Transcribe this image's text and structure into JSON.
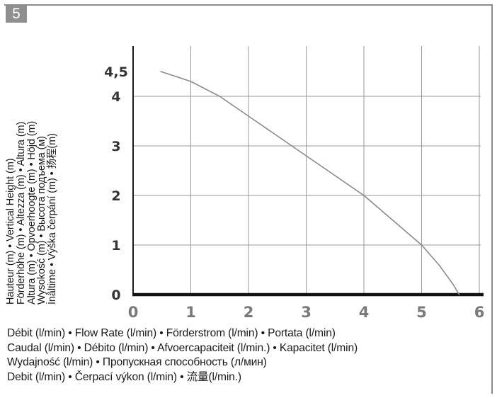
{
  "figure_number": "5",
  "chart_data": {
    "type": "line",
    "x_ticks": [
      "0",
      "1",
      "2",
      "3",
      "4",
      "5",
      "6"
    ],
    "y_ticks": [
      "0",
      "1",
      "2",
      "3",
      "4",
      "4,5"
    ],
    "xlim": [
      0,
      6
    ],
    "ylim": [
      0,
      4.5
    ],
    "grid": true,
    "series": [
      {
        "color": "#8a8a8a",
        "x": [
          0.48,
          1.0,
          1.5,
          2.0,
          2.5,
          3.0,
          3.5,
          4.0,
          4.5,
          5.0,
          5.3,
          5.55,
          5.65
        ],
        "y": [
          4.5,
          4.3,
          4.0,
          3.6,
          3.2,
          2.8,
          2.4,
          2.0,
          1.5,
          1.0,
          0.6,
          0.2,
          0.0
        ]
      }
    ],
    "ylabel_lines": [
      "Hauteur (m) • Vertical Height (m)",
      "Förderhöhe (m) • Altezza (m) • Altura (m)",
      "Altura (m) • Opvoerhoogte (m) • Höjd (m)",
      "Wysokość (m) • Высота подъема (м)",
      "İnâltime • Výška čerpání (m) • 扬程(m)"
    ],
    "xlabel_lines": [
      "Débit (l/min) • Flow Rate (l/min) • Förderstrom (l/min) • Portata (l/min)",
      "Caudal (l/min) • Débito (l/min) • Afvoercapaciteit (l/min.) • Kapacitet (l/min)",
      "Wydajność (l/min) • Пропускная способность (л/мин)",
      "Debit (l/min) • Čerpací výkon (l/min) • 流量(l/min.)"
    ]
  }
}
